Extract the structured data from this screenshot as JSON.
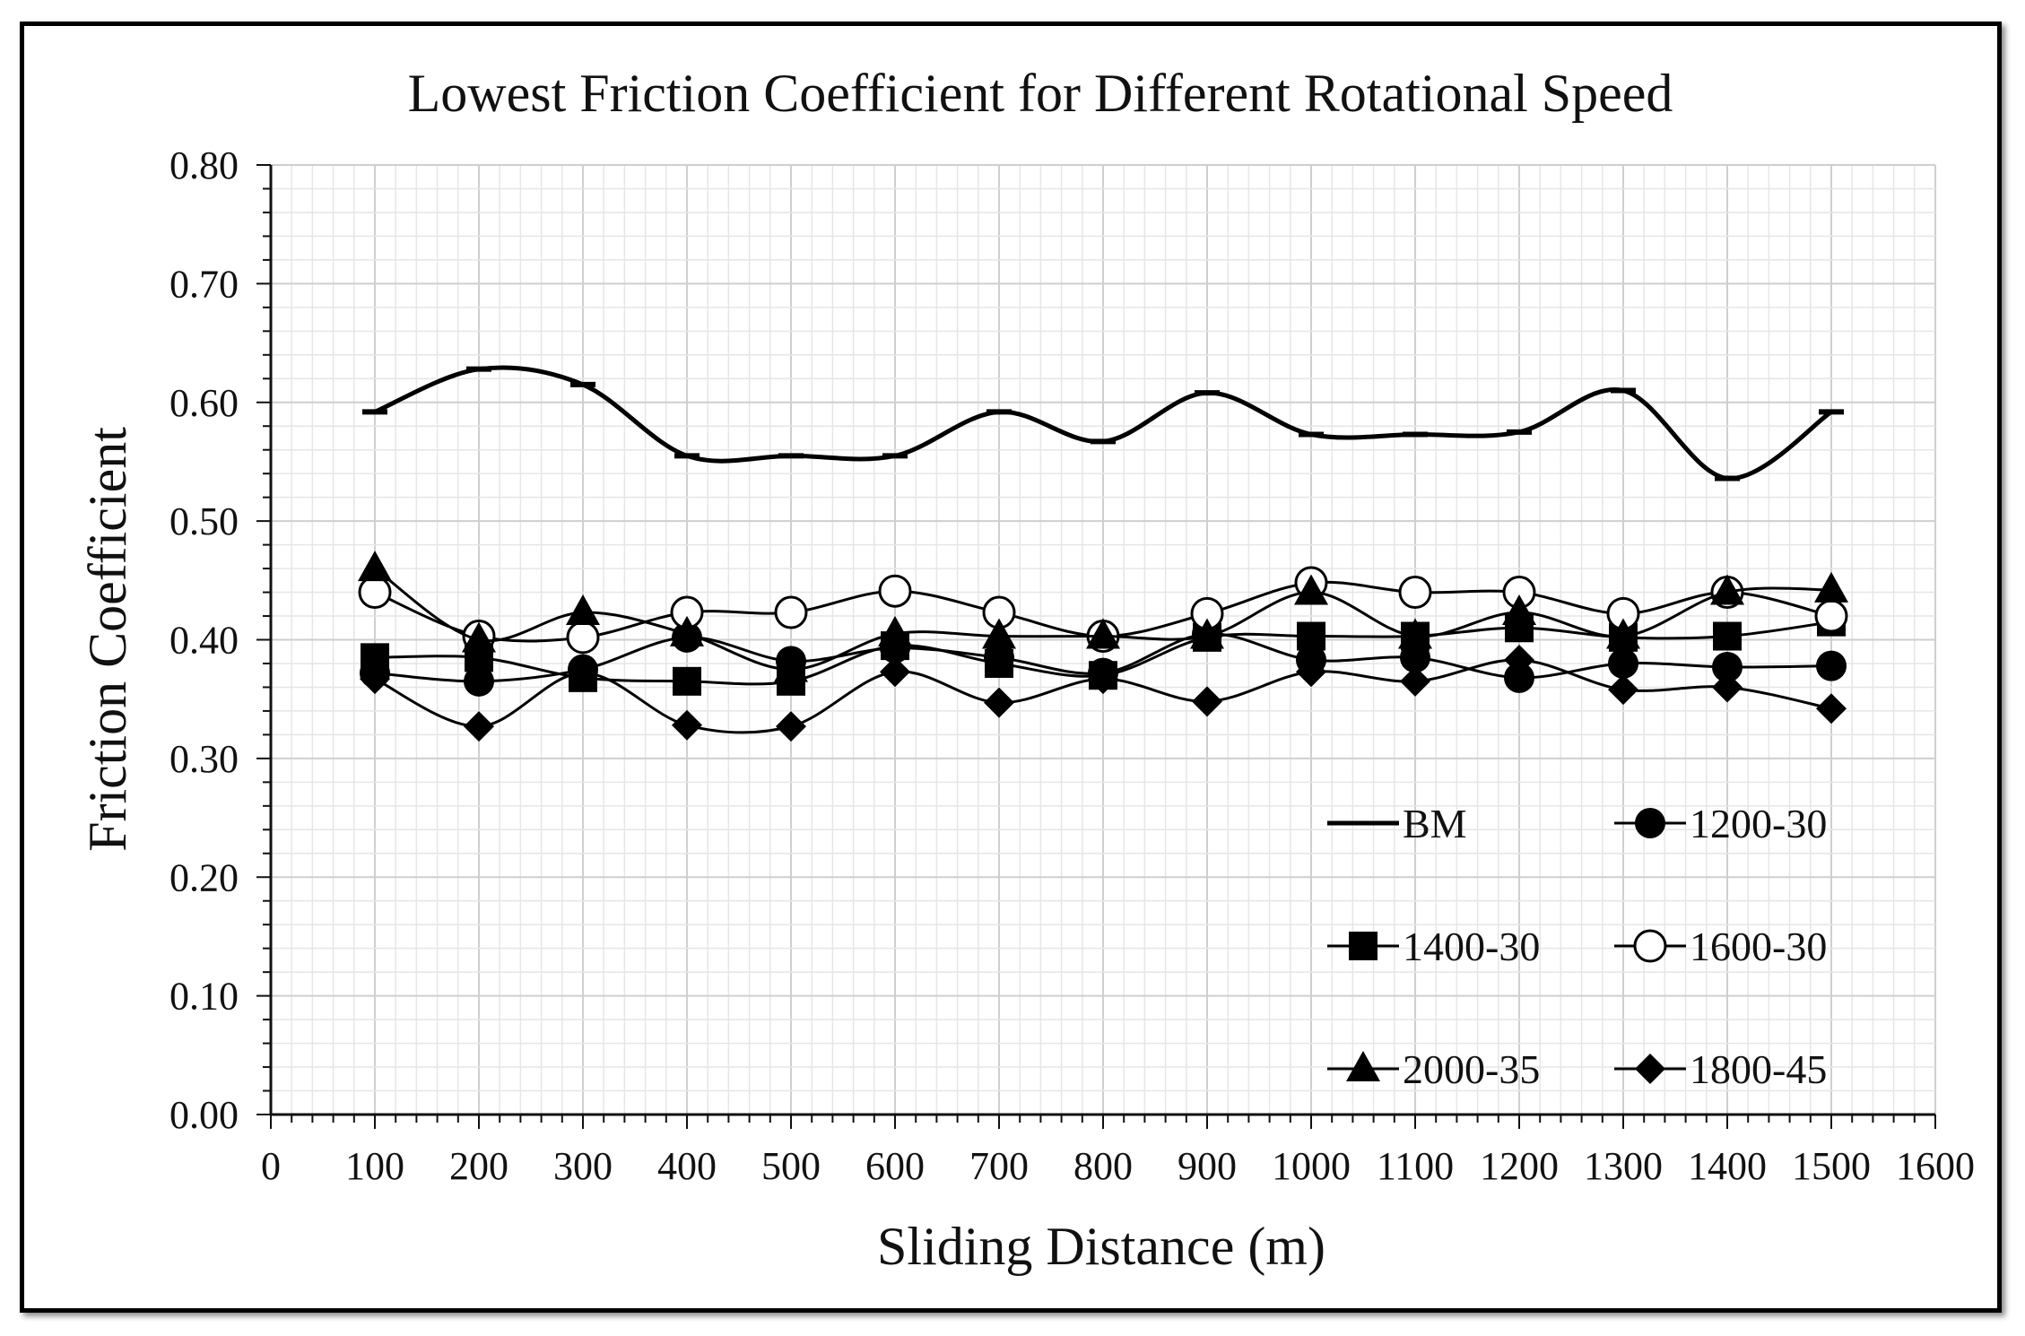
{
  "chart_data": {
    "type": "line",
    "title": "Lowest Friction Coefficient for Different Rotational Speed",
    "xlabel": "Sliding Distance (m)",
    "ylabel": "Friction Coefficient",
    "xlim": [
      0,
      1600
    ],
    "ylim": [
      0,
      0.8
    ],
    "x_ticks": [
      "0",
      "100",
      "200",
      "300",
      "400",
      "500",
      "600",
      "700",
      "800",
      "900",
      "1000",
      "1100",
      "1200",
      "1300",
      "1400",
      "1500",
      "1600"
    ],
    "y_ticks": [
      "0.00",
      "0.10",
      "0.20",
      "0.30",
      "0.40",
      "0.50",
      "0.60",
      "0.70",
      "0.80"
    ],
    "grid": true,
    "legend_position": "bottom-right",
    "x": [
      100,
      200,
      300,
      400,
      500,
      600,
      700,
      800,
      900,
      1000,
      1100,
      1200,
      1300,
      1400,
      1500
    ],
    "series": [
      {
        "name": "BM",
        "marker": "none",
        "smooth": true,
        "values": [
          0.592,
          0.628,
          0.615,
          0.555,
          0.555,
          0.555,
          0.592,
          0.567,
          0.608,
          0.573,
          0.573,
          0.575,
          0.61,
          0.536,
          0.592
        ]
      },
      {
        "name": "1200-30",
        "marker": "circle-filled",
        "values": [
          0.372,
          0.365,
          0.375,
          0.402,
          0.382,
          0.393,
          0.385,
          0.372,
          0.405,
          0.383,
          0.385,
          0.368,
          0.38,
          0.377,
          0.378
        ]
      },
      {
        "name": "1400-30",
        "marker": "square-filled",
        "values": [
          0.385,
          0.385,
          0.368,
          0.365,
          0.365,
          0.395,
          0.38,
          0.37,
          0.402,
          0.403,
          0.403,
          0.41,
          0.402,
          0.403,
          0.415
        ]
      },
      {
        "name": "1600-30",
        "marker": "circle-open",
        "values": [
          0.44,
          0.403,
          0.402,
          0.423,
          0.423,
          0.441,
          0.423,
          0.403,
          0.422,
          0.448,
          0.44,
          0.44,
          0.422,
          0.44,
          0.42
        ]
      },
      {
        "name": "2000-35",
        "marker": "triangle-filled",
        "values": [
          0.46,
          0.4,
          0.423,
          0.405,
          0.375,
          0.405,
          0.403,
          0.403,
          0.403,
          0.44,
          0.403,
          0.423,
          0.403,
          0.44,
          0.442
        ]
      },
      {
        "name": "1800-45",
        "marker": "diamond-filled",
        "values": [
          0.367,
          0.327,
          0.372,
          0.328,
          0.327,
          0.373,
          0.347,
          0.367,
          0.348,
          0.373,
          0.365,
          0.383,
          0.358,
          0.36,
          0.342
        ]
      }
    ]
  }
}
